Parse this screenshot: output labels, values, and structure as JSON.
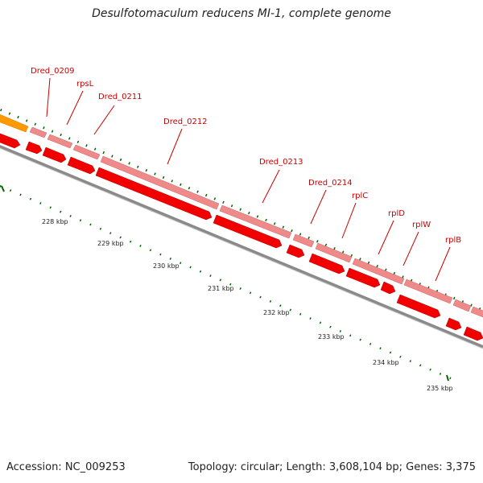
{
  "title": "Desulfotomaculum reducens MI-1, complete genome",
  "footer": {
    "accession": "Accession: NC_009253",
    "summary": "Topology: circular; Length: 3,608,104 bp; Genes: 3,375"
  },
  "colors": {
    "gene_label": "#cc0000",
    "pink_band": "#ef8a8a",
    "red_arrow": "#f20000",
    "orange": "#ff9900",
    "backbone": "#8a8a8a",
    "tick": "#006600"
  },
  "gene_labels": [
    {
      "name": "label-dred-0209",
      "text": "Dred_0209"
    },
    {
      "name": "label-rpsl",
      "text": "rpsL"
    },
    {
      "name": "label-dred-0211",
      "text": "Dred_0211"
    },
    {
      "name": "label-dred-0212",
      "text": "Dred_0212"
    },
    {
      "name": "label-dred-0213",
      "text": "Dred_0213"
    },
    {
      "name": "label-dred-0214",
      "text": "Dred_0214"
    },
    {
      "name": "label-rplc",
      "text": "rplC"
    },
    {
      "name": "label-rpld",
      "text": "rplD"
    },
    {
      "name": "label-rplw",
      "text": "rplW"
    },
    {
      "name": "label-rplb",
      "text": "rplB"
    }
  ],
  "scale_labels": [
    "228 kbp",
    "229 kbp",
    "230 kbp",
    "231 kbp",
    "232 kbp",
    "233 kbp",
    "234 kbp",
    "235 kbp"
  ]
}
